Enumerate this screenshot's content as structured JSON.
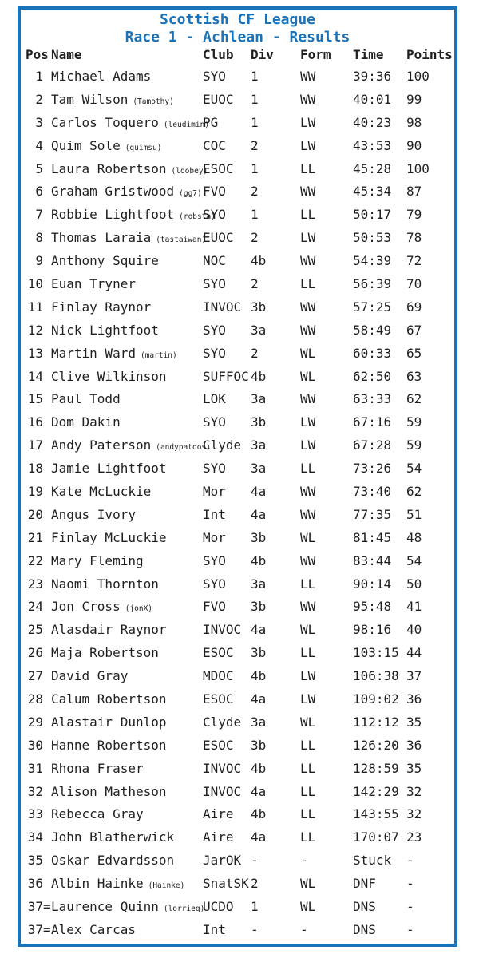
{
  "title": {
    "line1": "Scottish CF League",
    "line2": "Race 1 - Achlean - Results"
  },
  "colors": {
    "accent": "#1a73b8",
    "text": "#1f1f1f",
    "background": "#ffffff"
  },
  "columns": {
    "pos": "Pos",
    "name": "Name",
    "club": "Club",
    "div": "Div",
    "form": "Form",
    "time": "Time",
    "points": "Points"
  },
  "rows": [
    {
      "pos": "1",
      "name": "Michael Adams",
      "handle": "",
      "club": "SYO",
      "div": "1",
      "form": "WW",
      "time": "39:36",
      "points": "100"
    },
    {
      "pos": "2",
      "name": "Tam Wilson",
      "handle": "(Tamothy)",
      "club": "EUOC",
      "div": "1",
      "form": "WW",
      "time": "40:01",
      "points": "99"
    },
    {
      "pos": "3",
      "name": "Carlos Toquero",
      "handle": "(leudimin)",
      "club": "PG",
      "div": "1",
      "form": "LW",
      "time": "40:23",
      "points": "98"
    },
    {
      "pos": "4",
      "name": "Quim Sole",
      "handle": "(quimsu)",
      "club": "COC",
      "div": "2",
      "form": "LW",
      "time": "43:53",
      "points": "90"
    },
    {
      "pos": "5",
      "name": "Laura Robertson",
      "handle": "(loobey)",
      "club": "ESOC",
      "div": "1",
      "form": "LL",
      "time": "45:28",
      "points": "100"
    },
    {
      "pos": "6",
      "name": "Graham Gristwood",
      "handle": "(gg7)",
      "club": "FVO",
      "div": "2",
      "form": "WW",
      "time": "45:34",
      "points": "87"
    },
    {
      "pos": "7",
      "name": "Robbie Lightfoot",
      "handle": "(robsta)",
      "club": "SYO",
      "div": "1",
      "form": "LL",
      "time": "50:17",
      "points": "79"
    },
    {
      "pos": "8",
      "name": "Thomas Laraia",
      "handle": "(tastaiwan)",
      "club": "EUOC",
      "div": "2",
      "form": "LW",
      "time": "50:53",
      "points": "78"
    },
    {
      "pos": "9",
      "name": "Anthony Squire",
      "handle": "",
      "club": "NOC",
      "div": "4b",
      "form": "WW",
      "time": "54:39",
      "points": "72"
    },
    {
      "pos": "10",
      "name": "Euan Tryner",
      "handle": "",
      "club": "SYO",
      "div": "2",
      "form": "LL",
      "time": "56:39",
      "points": "70"
    },
    {
      "pos": "11",
      "name": "Finlay Raynor",
      "handle": "",
      "club": "INVOC",
      "div": "3b",
      "form": "WW",
      "time": "57:25",
      "points": "69"
    },
    {
      "pos": "12",
      "name": "Nick Lightfoot",
      "handle": "",
      "club": "SYO",
      "div": "3a",
      "form": "WW",
      "time": "58:49",
      "points": "67"
    },
    {
      "pos": "13",
      "name": "Martin Ward",
      "handle": "(martin)",
      "club": "SYO",
      "div": "2",
      "form": "WL",
      "time": "60:33",
      "points": "65"
    },
    {
      "pos": "14",
      "name": "Clive Wilkinson",
      "handle": "",
      "club": "SUFFOC",
      "div": "4b",
      "form": "WL",
      "time": "62:50",
      "points": "63"
    },
    {
      "pos": "15",
      "name": "Paul Todd",
      "handle": "",
      "club": "LOK",
      "div": "3a",
      "form": "WW",
      "time": "63:33",
      "points": "62"
    },
    {
      "pos": "16",
      "name": "Dom Dakin",
      "handle": "",
      "club": "SYO",
      "div": "3b",
      "form": "LW",
      "time": "67:16",
      "points": "59"
    },
    {
      "pos": "17",
      "name": "Andy Paterson",
      "handle": "(andypatqos)",
      "club": "Clyde",
      "div": "3a",
      "form": "LW",
      "time": "67:28",
      "points": "59"
    },
    {
      "pos": "18",
      "name": "Jamie Lightfoot",
      "handle": "",
      "club": "SYO",
      "div": "3a",
      "form": "LL",
      "time": "73:26",
      "points": "54"
    },
    {
      "pos": "19",
      "name": "Kate McLuckie",
      "handle": "",
      "club": "Mor",
      "div": "4a",
      "form": "WW",
      "time": "73:40",
      "points": "62"
    },
    {
      "pos": "20",
      "name": "Angus Ivory",
      "handle": "",
      "club": "Int",
      "div": "4a",
      "form": "WW",
      "time": "77:35",
      "points": "51"
    },
    {
      "pos": "21",
      "name": "Finlay McLuckie",
      "handle": "",
      "club": "Mor",
      "div": "3b",
      "form": "WL",
      "time": "81:45",
      "points": "48"
    },
    {
      "pos": "22",
      "name": "Mary Fleming",
      "handle": "",
      "club": "SYO",
      "div": "4b",
      "form": "WW",
      "time": "83:44",
      "points": "54"
    },
    {
      "pos": "23",
      "name": "Naomi Thornton",
      "handle": "",
      "club": "SYO",
      "div": "3a",
      "form": "LL",
      "time": "90:14",
      "points": "50"
    },
    {
      "pos": "24",
      "name": "Jon Cross",
      "handle": "(jonX)",
      "club": "FVO",
      "div": "3b",
      "form": "WW",
      "time": "95:48",
      "points": "41"
    },
    {
      "pos": "25",
      "name": "Alasdair Raynor",
      "handle": "",
      "club": "INVOC",
      "div": "4a",
      "form": "WL",
      "time": "98:16",
      "points": "40"
    },
    {
      "pos": "26",
      "name": "Maja Robertson",
      "handle": "",
      "club": "ESOC",
      "div": "3b",
      "form": "LL",
      "time": "103:15",
      "points": "44"
    },
    {
      "pos": "27",
      "name": "David Gray",
      "handle": "",
      "club": "MDOC",
      "div": "4b",
      "form": "LW",
      "time": "106:38",
      "points": "37"
    },
    {
      "pos": "28",
      "name": "Calum Robertson",
      "handle": "",
      "club": "ESOC",
      "div": "4a",
      "form": "LW",
      "time": "109:02",
      "points": "36"
    },
    {
      "pos": "29",
      "name": "Alastair Dunlop",
      "handle": "",
      "club": "Clyde",
      "div": "3a",
      "form": "WL",
      "time": "112:12",
      "points": "35"
    },
    {
      "pos": "30",
      "name": "Hanne Robertson",
      "handle": "",
      "club": "ESOC",
      "div": "3b",
      "form": "LL",
      "time": "126:20",
      "points": "36"
    },
    {
      "pos": "31",
      "name": "Rhona Fraser",
      "handle": "",
      "club": "INVOC",
      "div": "4b",
      "form": "LL",
      "time": "128:59",
      "points": "35"
    },
    {
      "pos": "32",
      "name": "Alison Matheson",
      "handle": "",
      "club": "INVOC",
      "div": "4a",
      "form": "LL",
      "time": "142:29",
      "points": "32"
    },
    {
      "pos": "33",
      "name": "Rebecca Gray",
      "handle": "",
      "club": "Aire",
      "div": "4b",
      "form": "LL",
      "time": "143:55",
      "points": "32"
    },
    {
      "pos": "34",
      "name": "John Blatherwick",
      "handle": "",
      "club": "Aire",
      "div": "4a",
      "form": "LL",
      "time": "170:07",
      "points": "23"
    },
    {
      "pos": "35",
      "name": "Oskar Edvardsson",
      "handle": "",
      "club": "JarOK",
      "div": "-",
      "form": "-",
      "time": "Stuck",
      "points": "-"
    },
    {
      "pos": "36",
      "name": "Albin Hainke",
      "handle": "(Hainke)",
      "club": "SnatSK",
      "div": "2",
      "form": "WL",
      "time": "DNF",
      "points": "-"
    },
    {
      "pos": "37=",
      "name": "Laurence Quinn",
      "handle": "(lorrieq)",
      "club": "UCDO",
      "div": "1",
      "form": "WL",
      "time": "DNS",
      "points": "-"
    },
    {
      "pos": "37=",
      "name": "Alex Carcas",
      "handle": "",
      "club": "Int",
      "div": "-",
      "form": "-",
      "time": "DNS",
      "points": "-"
    }
  ]
}
